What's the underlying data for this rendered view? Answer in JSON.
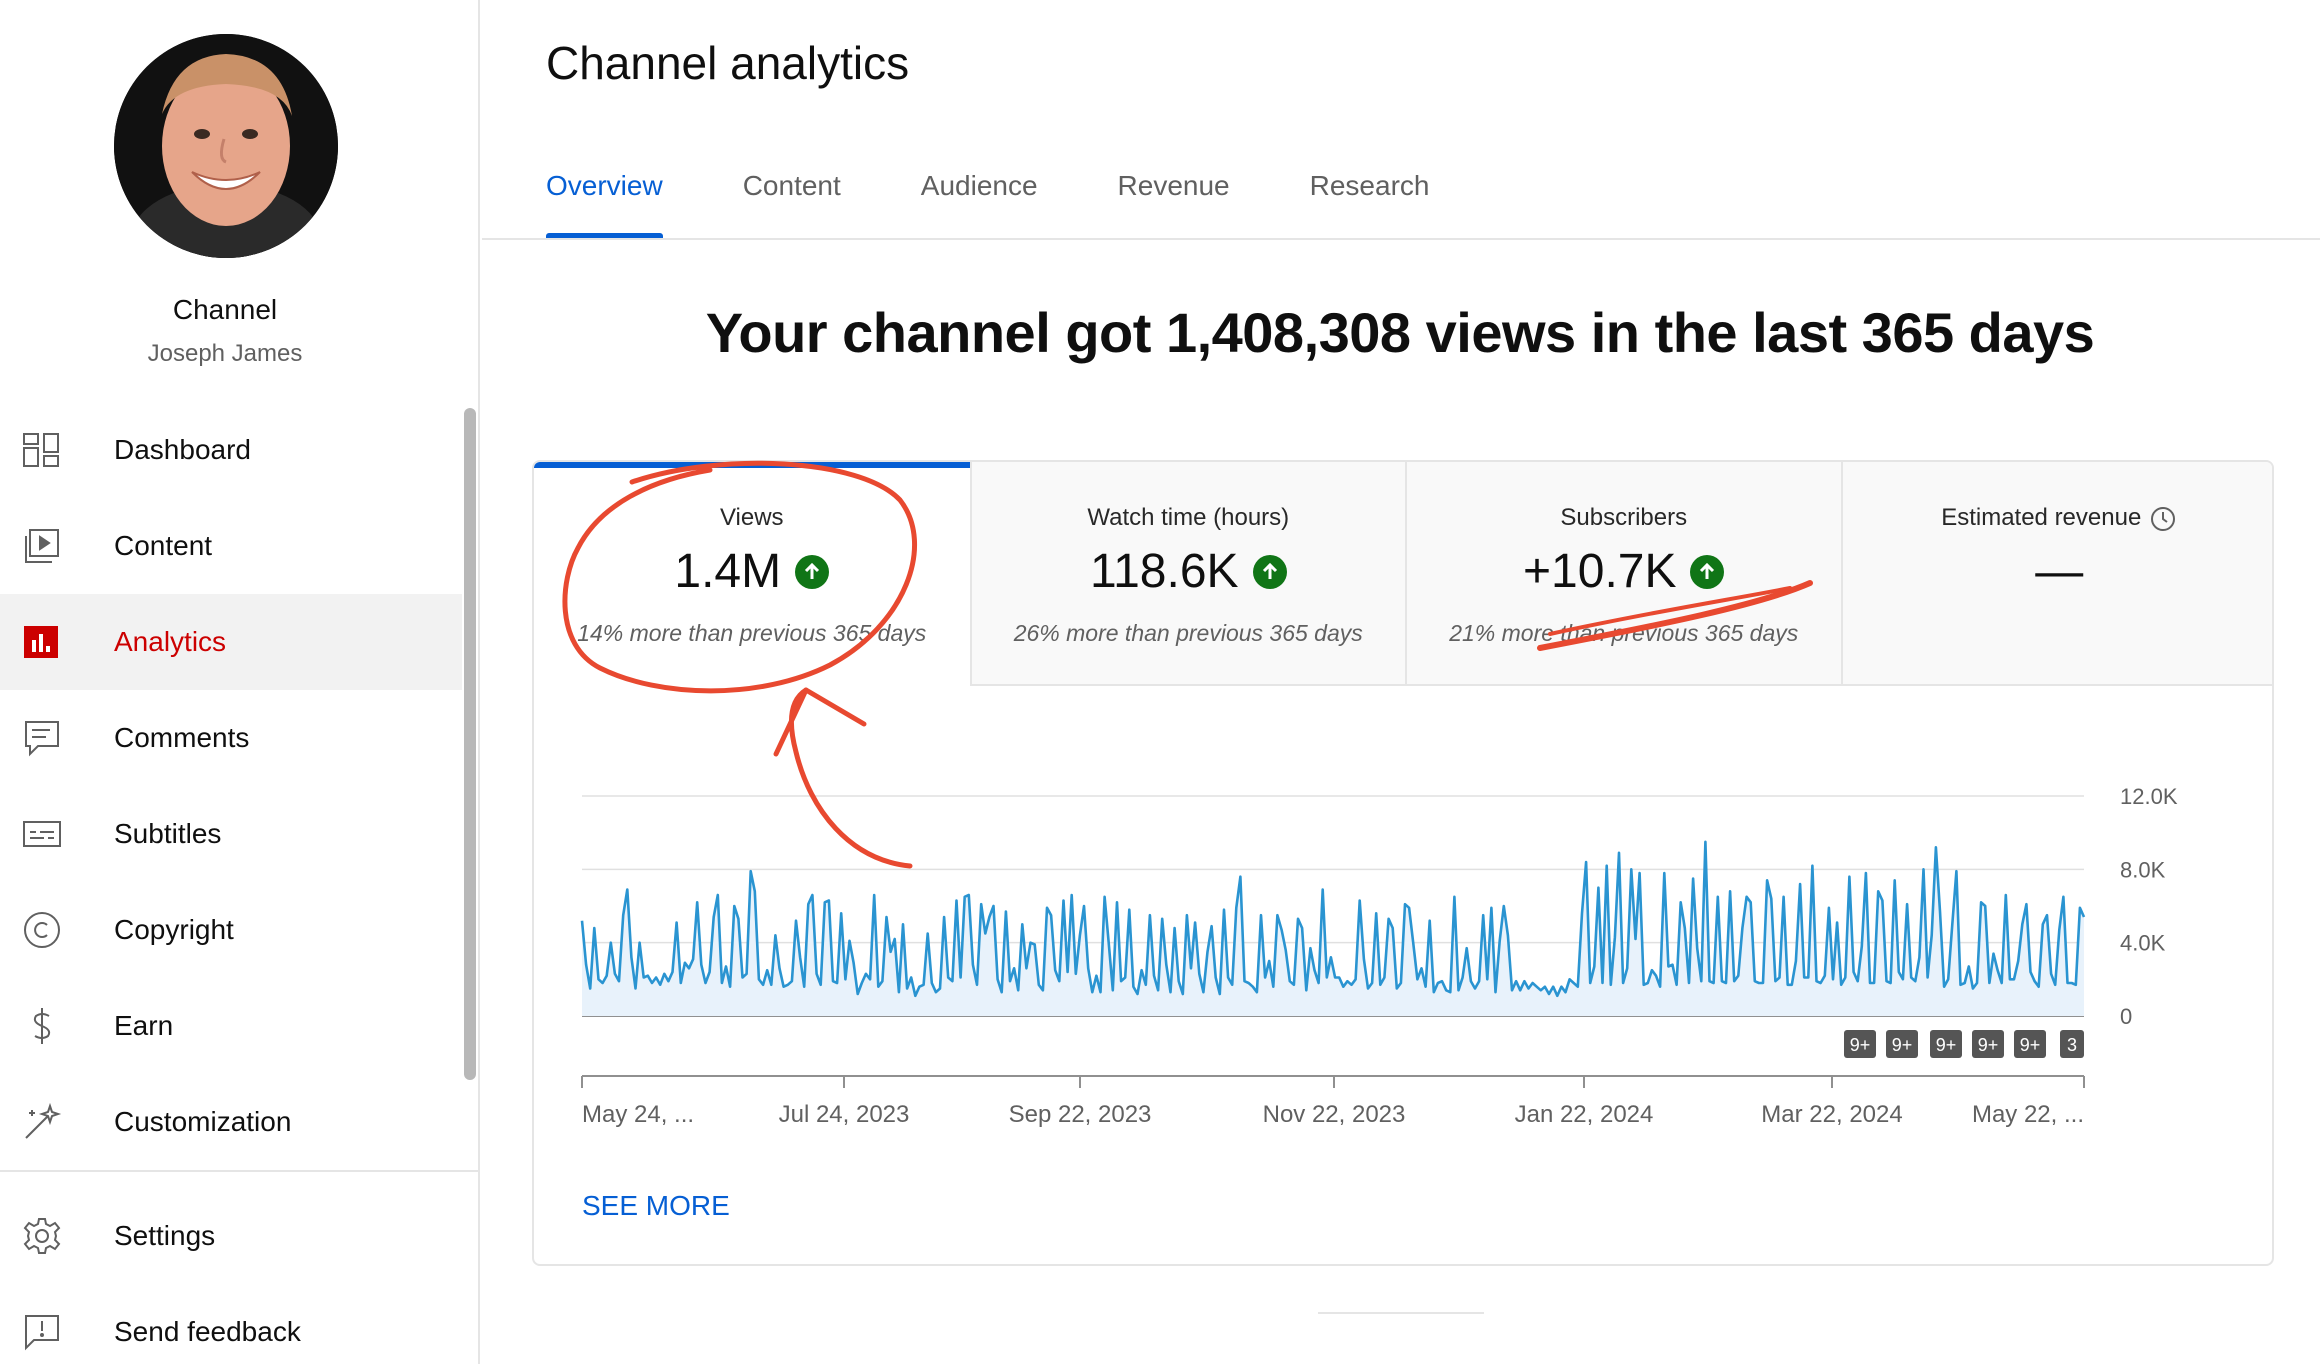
{
  "sidebar": {
    "channel_title": "Channel",
    "channel_name": "Joseph James",
    "items": [
      {
        "label": "Dashboard",
        "icon": "dashboard-icon"
      },
      {
        "label": "Content",
        "icon": "content-icon"
      },
      {
        "label": "Analytics",
        "icon": "analytics-icon",
        "active": true
      },
      {
        "label": "Comments",
        "icon": "comments-icon"
      },
      {
        "label": "Subtitles",
        "icon": "subtitles-icon"
      },
      {
        "label": "Copyright",
        "icon": "copyright-icon"
      },
      {
        "label": "Earn",
        "icon": "earn-icon"
      },
      {
        "label": "Customization",
        "icon": "customization-icon"
      }
    ],
    "bottom_items": [
      {
        "label": "Settings",
        "icon": "settings-icon"
      },
      {
        "label": "Send feedback",
        "icon": "feedback-icon"
      }
    ]
  },
  "header": {
    "title": "Channel analytics",
    "tabs": [
      "Overview",
      "Content",
      "Audience",
      "Revenue",
      "Research"
    ],
    "active_tab": "Overview"
  },
  "headline": "Your channel got 1,408,308 views in the last 365 days",
  "metrics": [
    {
      "label": "Views",
      "value": "1.4M",
      "trend": "up",
      "sub": "14% more than previous 365 days"
    },
    {
      "label": "Watch time (hours)",
      "value": "118.6K",
      "trend": "up",
      "sub": "26%  more than previous 365 days"
    },
    {
      "label": "Subscribers",
      "value": "+10.7K",
      "trend": "up",
      "sub": "21% more than previous 365 days"
    },
    {
      "label": "Estimated revenue",
      "value": "—",
      "sub": ""
    }
  ],
  "chart_data": {
    "type": "area",
    "series": [
      {
        "values": [
          5200,
          2800,
          1500,
          4800,
          2000,
          1800,
          2200,
          4000,
          2300,
          1900,
          5500,
          6900,
          3200,
          1500,
          4000,
          2100,
          2200,
          1800,
          2100,
          1700,
          2300,
          1900,
          2400,
          5100,
          1800,
          2900,
          2600,
          3100,
          6200,
          2800,
          1800,
          2400,
          5400,
          6600,
          1800,
          2700,
          1600,
          6000,
          5300,
          2100,
          2300,
          7900,
          6800,
          2000,
          1700,
          2500,
          1700,
          4400,
          2600,
          1600,
          1700,
          1900,
          5200,
          3200,
          1600,
          6100,
          6600,
          2300,
          1700,
          6200,
          6300,
          1900,
          1800,
          5600,
          2000,
          4100,
          2900,
          1200,
          1800,
          2300,
          2000,
          6600,
          1600,
          1900,
          5400,
          3500,
          4200,
          1300,
          5000,
          1500,
          2100,
          1100,
          1600,
          1700,
          4500,
          1800,
          1300,
          1500,
          5400,
          2100,
          1900,
          6300,
          2100,
          6500,
          6600,
          2800,
          1700,
          6100,
          4500,
          5400,
          6000,
          2000,
          1300,
          5700,
          1900,
          2600,
          1400,
          5000,
          2600,
          4000,
          3900,
          1700,
          1400,
          5900,
          5500,
          2500,
          1900,
          6300,
          2400,
          6600,
          2300,
          4400,
          6000,
          2600,
          1300,
          2200,
          1300,
          6500,
          4000,
          1400,
          6200,
          1900,
          2100,
          5800,
          1600,
          1200,
          2500,
          1700,
          5500,
          2200,
          1400,
          5300,
          2800,
          1300,
          4800,
          1900,
          1200,
          5500,
          2600,
          5100,
          2300,
          1300,
          3500,
          4900,
          2100,
          1200,
          5800,
          2100,
          1700,
          5900,
          7600,
          1900,
          1800,
          1600,
          1300,
          5500,
          2100,
          3000,
          1600,
          5500,
          4700,
          3600,
          1900,
          1700,
          5300,
          4800,
          1400,
          3700,
          2500,
          1800,
          6900,
          2100,
          3200,
          2100,
          2100,
          1600,
          1900,
          1700,
          2000,
          6300,
          3100,
          1500,
          1800,
          5600,
          1700,
          2100,
          5300,
          4800,
          1500,
          1800,
          6100,
          5900,
          4000,
          2000,
          2600,
          1600,
          5200,
          1300,
          1800,
          1900,
          1400,
          1300,
          6500,
          1400,
          2100,
          3700,
          1900,
          1500,
          1900,
          5500,
          2000,
          5900,
          1300,
          4100,
          6000,
          4400,
          1400,
          1900,
          1400,
          1900,
          1500,
          1800,
          1600,
          1400,
          1600,
          1200,
          1600,
          1100,
          1600,
          1300,
          2000,
          1800,
          1600,
          5600,
          8400,
          1800,
          2700,
          7000,
          1800,
          8200,
          1700,
          4300,
          8900,
          1800,
          2600,
          8000,
          4200,
          7800,
          1700,
          1800,
          2500,
          2200,
          1600,
          7800,
          2700,
          2800,
          1700,
          6200,
          4800,
          1800,
          7500,
          3700,
          1900,
          9500,
          1900,
          1800,
          6500,
          1900,
          1800,
          6800,
          1900,
          2200,
          4800,
          6500,
          6200,
          1900,
          1800,
          1800,
          7400,
          6400,
          1900,
          2100,
          6500,
          1700,
          1700,
          3000,
          7200,
          2100,
          2100,
          8200,
          1900,
          1800,
          2200,
          5900,
          2000,
          5100,
          1700,
          2100,
          7600,
          2400,
          1900,
          3800,
          7800,
          1800,
          1800,
          6800,
          6300,
          1900,
          1800,
          7400,
          2400,
          2000,
          6100,
          2100,
          1900,
          3200,
          8000,
          2100,
          4400,
          9200,
          5700,
          1600,
          2000,
          5000,
          7900,
          1700,
          1800,
          2700,
          1500,
          1800,
          6200,
          6000,
          1800,
          3400,
          2500,
          1800,
          6600,
          2000,
          2000,
          3000,
          5000,
          6100,
          2400,
          1900,
          1600,
          5000,
          5500,
          2300,
          1700,
          4700,
          6500,
          1800,
          1800,
          1700,
          5900,
          5400
        ]
      }
    ],
    "x_tick_labels": [
      "May 24, ...",
      "Jul 24, 2023",
      "Sep 22, 2023",
      "Nov 22, 2023",
      "Jan 22, 2024",
      "Mar 22, 2024",
      "May 22, ..."
    ],
    "y_tick_labels": [
      "0",
      "4.0K",
      "8.0K",
      "12.0K"
    ],
    "ylim": [
      0,
      12000
    ],
    "grid": true,
    "line_color": "#2a94d1",
    "fill_color": "#e8f2fb",
    "badges": [
      "9+",
      "9+",
      "9+",
      "9+",
      "9+",
      "3"
    ]
  },
  "see_more": "SEE MORE",
  "colors": {
    "accent": "#065fd4",
    "active_nav": "#cc0000",
    "trend_up": "#107516",
    "annotation": "#e84930"
  }
}
